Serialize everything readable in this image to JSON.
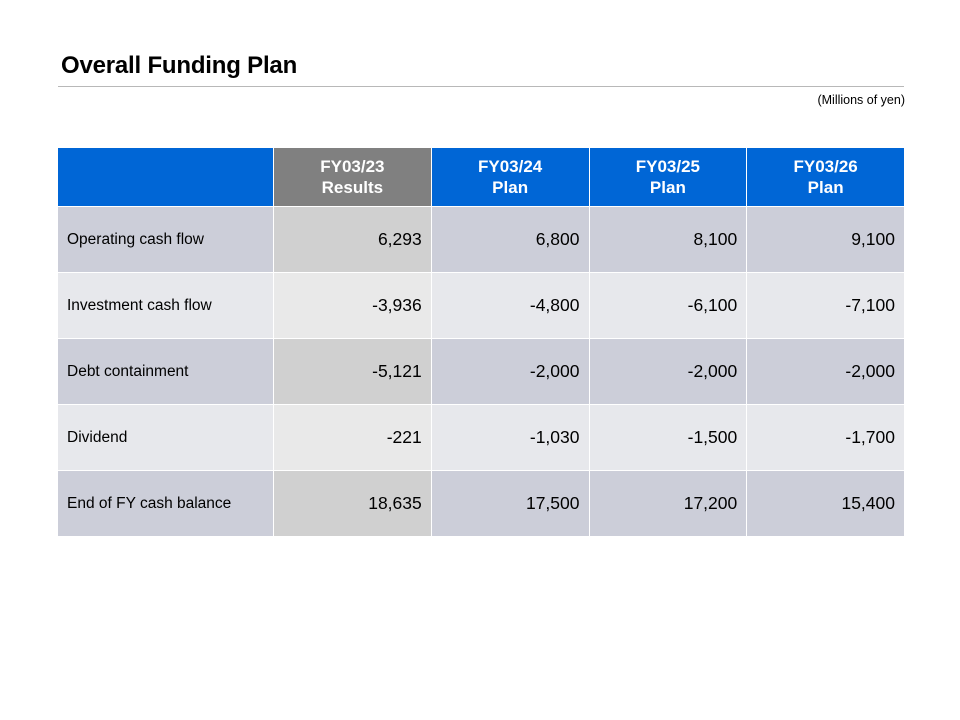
{
  "title": "Overall Funding Plan",
  "unit_note": "(Millions of yen)",
  "table": {
    "columns": [
      {
        "line1": "FY03/23",
        "line2": "Results"
      },
      {
        "line1": "FY03/24",
        "line2": "Plan"
      },
      {
        "line1": "FY03/25",
        "line2": "Plan"
      },
      {
        "line1": "FY03/26",
        "line2": "Plan"
      }
    ],
    "rows": [
      {
        "label": "Operating cash flow",
        "values": [
          "6,293",
          "6,800",
          "8,100",
          "9,100"
        ]
      },
      {
        "label": "Investment cash flow",
        "values": [
          "-3,936",
          "-4,800",
          "-6,100",
          "-7,100"
        ]
      },
      {
        "label": "Debt containment",
        "values": [
          "-5,121",
          "-2,000",
          "-2,000",
          "-2,000"
        ]
      },
      {
        "label": "Dividend",
        "values": [
          "-221",
          "-1,030",
          "-1,500",
          "-1,700"
        ]
      },
      {
        "label": "End of FY cash balance",
        "values": [
          "18,635",
          "17,500",
          "17,200",
          "15,400"
        ]
      }
    ]
  },
  "colors": {
    "header_plan": "#0066d6",
    "header_results": "#808080",
    "row_dark": "#ccced9",
    "row_light": "#e7e8ec"
  }
}
